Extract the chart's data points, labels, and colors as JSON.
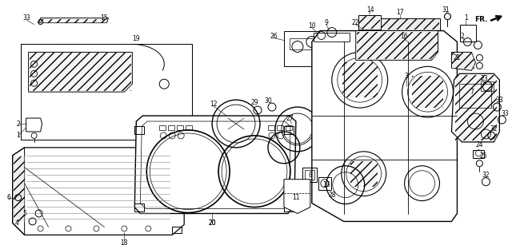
{
  "bg_color": "#ffffff",
  "fig_width": 6.4,
  "fig_height": 3.12,
  "dpi": 100
}
